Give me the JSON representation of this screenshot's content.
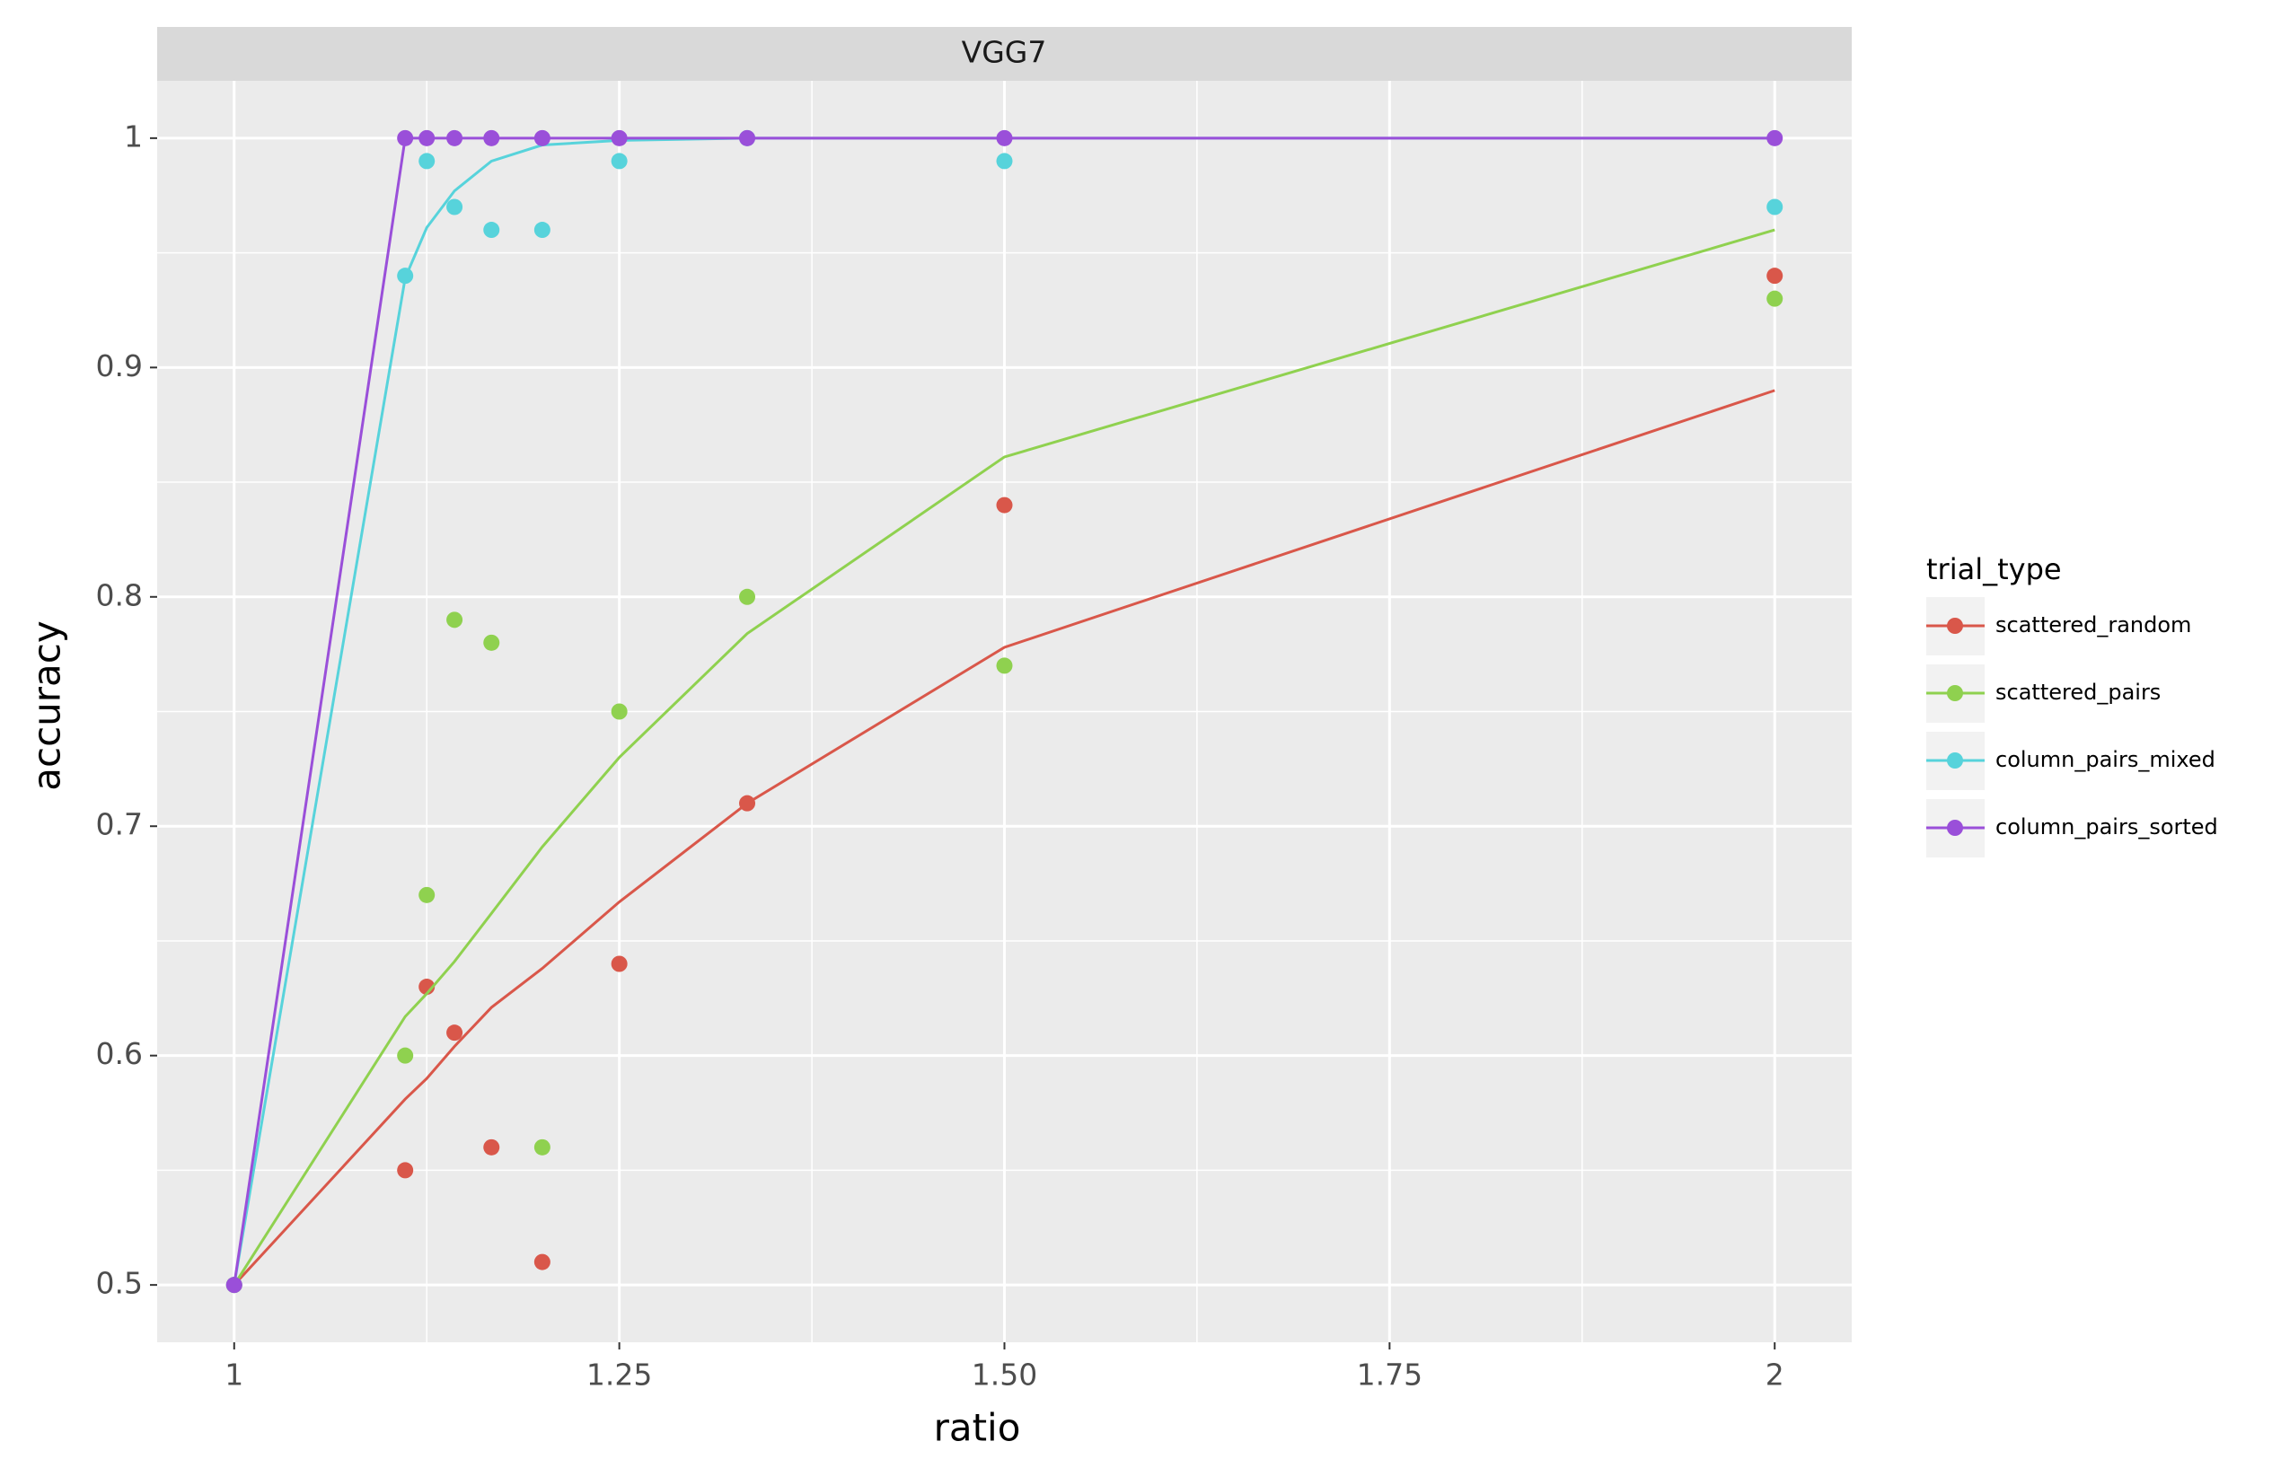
{
  "chart_data": {
    "type": "scatter_fit",
    "title": "VGG7",
    "x_label": "ratio",
    "y_label": "accuracy",
    "legend_title": "trial_type",
    "legend_position": "right",
    "grid": true,
    "xlim": [
      0.95,
      2.05
    ],
    "ylim": [
      0.475,
      1.025
    ],
    "xticks": [
      1,
      1.25,
      {
        "value": 1.5,
        "label": "1.50"
      },
      1.75,
      2
    ],
    "x_minor_ticks": [
      1.125,
      1.375,
      1.625,
      1.875
    ],
    "yticks": [
      0.5,
      0.6,
      0.7,
      0.8,
      0.9,
      1
    ],
    "y_minor_ticks": [
      0.55,
      0.65,
      0.75,
      0.85,
      0.95
    ],
    "series": [
      {
        "name": "scattered_random",
        "color": "#d9574a",
        "x": [
          1,
          1.111,
          1.125,
          1.143,
          1.167,
          1.2,
          1.25,
          1.333,
          1.5,
          2
        ],
        "values": [
          0.5,
          0.55,
          0.63,
          0.61,
          0.56,
          0.51,
          0.64,
          0.71,
          0.84,
          0.94
        ],
        "fit": [
          0.5,
          0.581,
          0.59,
          0.604,
          0.621,
          0.638,
          0.667,
          0.71,
          0.778,
          0.89
        ]
      },
      {
        "name": "scattered_pairs",
        "color": "#8fd14f",
        "x": [
          1,
          1.111,
          1.125,
          1.143,
          1.167,
          1.2,
          1.25,
          1.333,
          1.5,
          2
        ],
        "values": [
          0.5,
          0.6,
          0.67,
          0.79,
          0.78,
          0.56,
          0.75,
          0.8,
          0.77,
          0.93
        ],
        "fit": [
          0.5,
          0.617,
          0.627,
          0.641,
          0.662,
          0.691,
          0.73,
          0.784,
          0.861,
          0.96
        ]
      },
      {
        "name": "column_pairs_mixed",
        "color": "#57d3db",
        "x": [
          1,
          1.111,
          1.125,
          1.143,
          1.167,
          1.2,
          1.25,
          1.333,
          1.5,
          2
        ],
        "values": [
          0.5,
          0.94,
          0.99,
          0.97,
          0.96,
          0.96,
          0.99,
          1,
          0.99,
          0.97
        ],
        "fit": [
          0.5,
          0.939,
          0.961,
          0.977,
          0.99,
          0.997,
          0.999,
          1,
          1,
          1
        ]
      },
      {
        "name": "column_pairs_sorted",
        "color": "#9a4fd9",
        "x": [
          1,
          1.111,
          1.125,
          1.143,
          1.167,
          1.2,
          1.25,
          1.333,
          1.5,
          2
        ],
        "values": [
          0.5,
          1,
          1,
          1,
          1,
          1,
          1,
          1,
          1,
          1
        ],
        "fit": [
          0.5,
          1,
          1,
          1,
          1,
          1,
          1,
          1,
          1,
          1
        ]
      }
    ]
  }
}
